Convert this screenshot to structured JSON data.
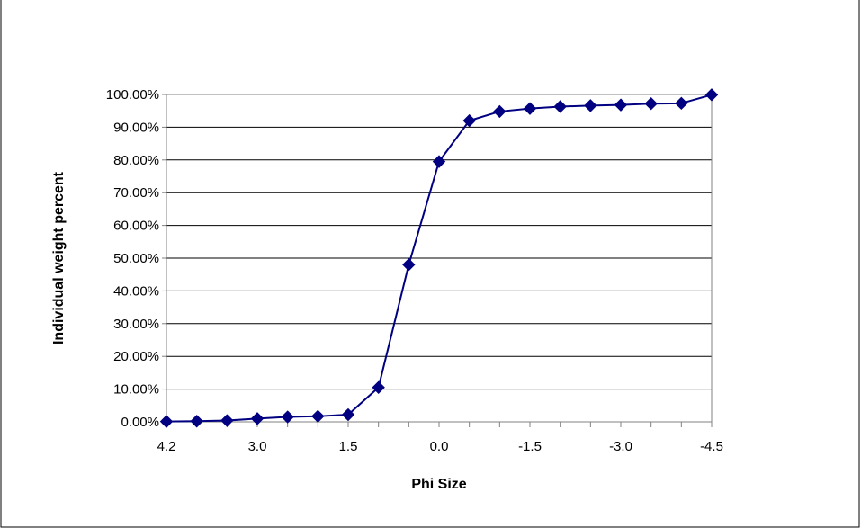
{
  "colors": {
    "series": "#000080",
    "axis": "#808080",
    "grid": "#000000",
    "frame": "#000000"
  },
  "chart_data": {
    "type": "line",
    "title": "",
    "xlabel": "Phi Size",
    "ylabel": "Individual weight percent",
    "x_tick_labels": [
      "4.2",
      "3.0",
      "1.5",
      "0.0",
      "-1.5",
      "-3.0",
      "-4.5"
    ],
    "y_tick_labels": [
      "0.00%",
      "10.00%",
      "20.00%",
      "30.00%",
      "40.00%",
      "50.00%",
      "60.00%",
      "70.00%",
      "80.00%",
      "90.00%",
      "100.00%"
    ],
    "ylim": [
      0,
      100
    ],
    "grid": "horizontal major gridlines",
    "legend": "none",
    "marker": "diamond",
    "series": [
      {
        "x": [
          4.2,
          4.0,
          3.5,
          3.0,
          2.5,
          2.0,
          1.5,
          1.0,
          0.5,
          0.0,
          -0.5,
          -1.0,
          -1.5,
          -2.0,
          -2.5,
          -3.0,
          -3.5,
          -4.0,
          -4.5
        ],
        "values": [
          0.1,
          0.2,
          0.4,
          1.0,
          1.5,
          1.7,
          2.2,
          10.5,
          48.0,
          79.5,
          92.0,
          94.8,
          95.7,
          96.3,
          96.6,
          96.8,
          97.2,
          97.3,
          99.9
        ]
      }
    ]
  }
}
